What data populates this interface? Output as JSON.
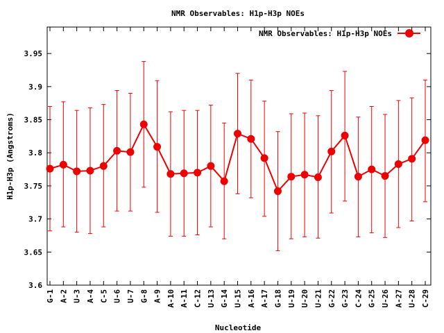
{
  "chart_data": {
    "type": "line",
    "title": "NMR Observables: H1p-H3p NOEs",
    "xlabel": "Nucleotide",
    "ylabel": "H1p-H3p (Angstroms)",
    "ylim": [
      3.6,
      3.99
    ],
    "yticks": [
      "3.6",
      "3.65",
      "3.7",
      "3.75",
      "3.8",
      "3.85",
      "3.9",
      "3.95"
    ],
    "grid": false,
    "legend_position": "top-right",
    "categories": [
      "G-1",
      "A-2",
      "U-3",
      "A-4",
      "C-5",
      "U-6",
      "U-7",
      "G-8",
      "A-9",
      "A-10",
      "A-11",
      "C-12",
      "U-13",
      "G-14",
      "U-15",
      "A-16",
      "A-17",
      "G-18",
      "U-19",
      "U-20",
      "U-21",
      "G-22",
      "G-23",
      "C-24",
      "G-25",
      "U-26",
      "A-27",
      "U-28",
      "C-29"
    ],
    "series": [
      {
        "name": "NMR Observables: H1p-H3p NOEs",
        "color": "#ee0000",
        "values": [
          3.776,
          3.782,
          3.772,
          3.773,
          3.78,
          3.803,
          3.801,
          3.843,
          3.809,
          3.768,
          3.769,
          3.77,
          3.78,
          3.757,
          3.829,
          3.821,
          3.792,
          3.742,
          3.764,
          3.767,
          3.763,
          3.802,
          3.826,
          3.764,
          3.775,
          3.765,
          3.783,
          3.791,
          3.819
        ],
        "error_low": [
          3.682,
          3.688,
          3.68,
          3.678,
          3.688,
          3.712,
          3.712,
          3.748,
          3.71,
          3.674,
          3.674,
          3.676,
          3.688,
          3.67,
          3.738,
          3.732,
          3.704,
          3.652,
          3.67,
          3.673,
          3.671,
          3.709,
          3.727,
          3.673,
          3.679,
          3.672,
          3.687,
          3.697,
          3.726
        ],
        "error_high": [
          3.87,
          3.877,
          3.864,
          3.868,
          3.873,
          3.894,
          3.89,
          3.938,
          3.909,
          3.862,
          3.864,
          3.864,
          3.872,
          3.845,
          3.92,
          3.91,
          3.878,
          3.832,
          3.859,
          3.86,
          3.856,
          3.894,
          3.923,
          3.854,
          3.87,
          3.858,
          3.879,
          3.883,
          3.91
        ]
      }
    ]
  }
}
